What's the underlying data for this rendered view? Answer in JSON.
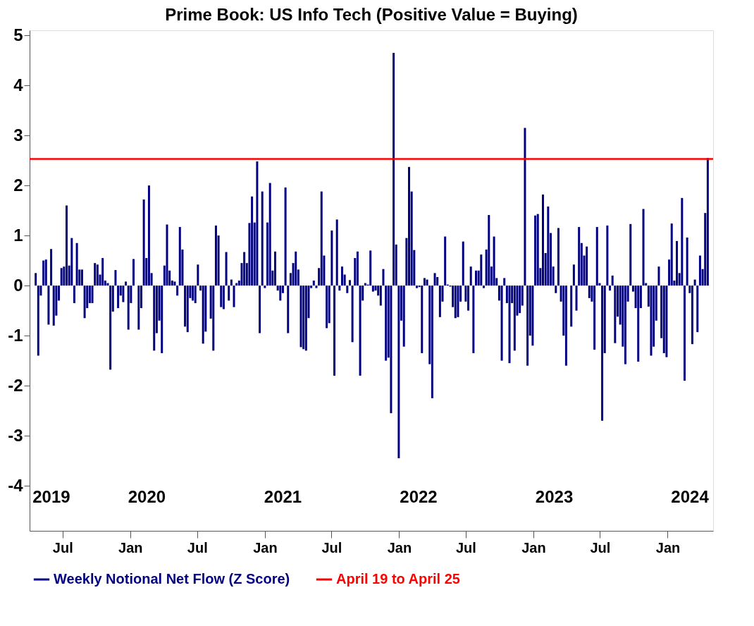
{
  "chart_data": {
    "type": "bar",
    "title": "Prime Book: US Info Tech (Positive Value = Buying)",
    "x": [
      "2019-04-19",
      "2019-04-26",
      "2019-05-03",
      "2019-05-10",
      "2019-05-17",
      "2019-05-24",
      "2019-05-31",
      "2019-06-07",
      "2019-06-14",
      "2019-06-21",
      "2019-06-28",
      "2019-07-05",
      "2019-07-12",
      "2019-07-19",
      "2019-07-26",
      "2019-08-02",
      "2019-08-09",
      "2019-08-16",
      "2019-08-23",
      "2019-08-30",
      "2019-09-06",
      "2019-09-13",
      "2019-09-20",
      "2019-09-27",
      "2019-10-04",
      "2019-10-11",
      "2019-10-18",
      "2019-10-25",
      "2019-11-01",
      "2019-11-08",
      "2019-11-15",
      "2019-11-22",
      "2019-11-29",
      "2019-12-06",
      "2019-12-13",
      "2019-12-20",
      "2019-12-27",
      "2020-01-03",
      "2020-01-10",
      "2020-01-17",
      "2020-01-24",
      "2020-01-31",
      "2020-02-07",
      "2020-02-14",
      "2020-02-21",
      "2020-02-28",
      "2020-03-06",
      "2020-03-13",
      "2020-03-20",
      "2020-03-27",
      "2020-04-03",
      "2020-04-10",
      "2020-04-17",
      "2020-04-24",
      "2020-05-01",
      "2020-05-08",
      "2020-05-15",
      "2020-05-22",
      "2020-05-29",
      "2020-06-05",
      "2020-06-12",
      "2020-06-19",
      "2020-06-26",
      "2020-07-03",
      "2020-07-10",
      "2020-07-17",
      "2020-07-24",
      "2020-07-31",
      "2020-08-07",
      "2020-08-14",
      "2020-08-21",
      "2020-08-28",
      "2020-09-04",
      "2020-09-11",
      "2020-09-18",
      "2020-09-25",
      "2020-10-02",
      "2020-10-09",
      "2020-10-16",
      "2020-10-23",
      "2020-10-30",
      "2020-11-06",
      "2020-11-13",
      "2020-11-20",
      "2020-11-27",
      "2020-12-04",
      "2020-12-11",
      "2020-12-18",
      "2020-12-25",
      "2021-01-01",
      "2021-01-08",
      "2021-01-15",
      "2021-01-22",
      "2021-01-29",
      "2021-02-05",
      "2021-02-12",
      "2021-02-19",
      "2021-02-26",
      "2021-03-05",
      "2021-03-12",
      "2021-03-19",
      "2021-03-26",
      "2021-04-02",
      "2021-04-09",
      "2021-04-16",
      "2021-04-23",
      "2021-04-30",
      "2021-05-07",
      "2021-05-14",
      "2021-05-21",
      "2021-05-28",
      "2021-06-04",
      "2021-06-11",
      "2021-06-18",
      "2021-06-25",
      "2021-07-02",
      "2021-07-09",
      "2021-07-16",
      "2021-07-23",
      "2021-07-30",
      "2021-08-06",
      "2021-08-13",
      "2021-08-20",
      "2021-08-27",
      "2021-09-03",
      "2021-09-10",
      "2021-09-17",
      "2021-09-24",
      "2021-10-01",
      "2021-10-08",
      "2021-10-15",
      "2021-10-22",
      "2021-10-29",
      "2021-11-05",
      "2021-11-12",
      "2021-11-19",
      "2021-11-26",
      "2021-12-03",
      "2021-12-10",
      "2021-12-17",
      "2021-12-24",
      "2021-12-31",
      "2022-01-07",
      "2022-01-14",
      "2022-01-21",
      "2022-01-28",
      "2022-02-04",
      "2022-02-11",
      "2022-02-18",
      "2022-02-25",
      "2022-03-04",
      "2022-03-11",
      "2022-03-18",
      "2022-03-25",
      "2022-04-01",
      "2022-04-08",
      "2022-04-15",
      "2022-04-22",
      "2022-04-29",
      "2022-05-06",
      "2022-05-13",
      "2022-05-20",
      "2022-05-27",
      "2022-06-03",
      "2022-06-10",
      "2022-06-17",
      "2022-06-24",
      "2022-07-01",
      "2022-07-08",
      "2022-07-15",
      "2022-07-22",
      "2022-07-29",
      "2022-08-05",
      "2022-08-12",
      "2022-08-19",
      "2022-08-26",
      "2022-09-02",
      "2022-09-09",
      "2022-09-16",
      "2022-09-23",
      "2022-09-30",
      "2022-10-07",
      "2022-10-14",
      "2022-10-21",
      "2022-10-28",
      "2022-11-04",
      "2022-11-11",
      "2022-11-18",
      "2022-11-25",
      "2022-12-02",
      "2022-12-09",
      "2022-12-16",
      "2022-12-23",
      "2022-12-30",
      "2023-01-06",
      "2023-01-13",
      "2023-01-20",
      "2023-01-27",
      "2023-02-03",
      "2023-02-10",
      "2023-02-17",
      "2023-02-24",
      "2023-03-03",
      "2023-03-10",
      "2023-03-17",
      "2023-03-24",
      "2023-03-31",
      "2023-04-07",
      "2023-04-14",
      "2023-04-21",
      "2023-04-28",
      "2023-05-05",
      "2023-05-12",
      "2023-05-19",
      "2023-05-26",
      "2023-06-02",
      "2023-06-09",
      "2023-06-16",
      "2023-06-23",
      "2023-06-30",
      "2023-07-07",
      "2023-07-14",
      "2023-07-21",
      "2023-07-28",
      "2023-08-04",
      "2023-08-11",
      "2023-08-18",
      "2023-08-25",
      "2023-09-01",
      "2023-09-08",
      "2023-09-15",
      "2023-09-22",
      "2023-09-29",
      "2023-10-06",
      "2023-10-13",
      "2023-10-20",
      "2023-10-27",
      "2023-11-03",
      "2023-11-10",
      "2023-11-17",
      "2023-11-24",
      "2023-12-01",
      "2023-12-08",
      "2023-12-15",
      "2023-12-22",
      "2023-12-29",
      "2024-01-05",
      "2024-01-12",
      "2024-01-19",
      "2024-01-26",
      "2024-02-02",
      "2024-02-09",
      "2024-02-16",
      "2024-02-23",
      "2024-03-01",
      "2024-03-08",
      "2024-03-15",
      "2024-03-22",
      "2024-03-29",
      "2024-04-05",
      "2024-04-12",
      "2024-04-19"
    ],
    "series": [
      {
        "name": "Weekly Notional Net Flow (Z Score)",
        "color": "#000080",
        "values": [
          0.25,
          -1.4,
          -0.2,
          0.5,
          0.52,
          -0.78,
          0.73,
          -0.8,
          -0.6,
          -0.3,
          0.35,
          0.38,
          1.6,
          0.4,
          0.95,
          -0.35,
          0.85,
          0.32,
          0.32,
          -0.65,
          -0.45,
          -0.35,
          -0.35,
          0.45,
          0.42,
          0.22,
          0.55,
          0.1,
          0.05,
          -1.68,
          -0.52,
          0.31,
          -0.45,
          -0.2,
          -0.33,
          0.08,
          -0.88,
          -0.35,
          0.53,
          0,
          -0.88,
          -0.45,
          1.72,
          0.55,
          2.0,
          0.25,
          -1.3,
          -0.95,
          -0.7,
          -1.35,
          0.4,
          1.22,
          0.3,
          0.1,
          0.08,
          -0.2,
          1.17,
          0.72,
          -0.82,
          -0.93,
          -0.25,
          -0.3,
          -0.35,
          0.42,
          -0.1,
          -1.16,
          -0.92,
          0,
          -0.66,
          -1.3,
          1.2,
          1.0,
          -0.43,
          -0.47,
          0.67,
          -0.3,
          0.12,
          -0.43,
          0.05,
          0.1,
          0.45,
          0.67,
          0.45,
          1.25,
          1.78,
          1.26,
          2.48,
          -0.95,
          1.88,
          -0.05,
          1.26,
          2.05,
          0.3,
          0.68,
          -0.1,
          -0.3,
          -0.15,
          1.96,
          -0.95,
          0.25,
          0.45,
          0.68,
          0.32,
          -1.23,
          -1.27,
          -1.3,
          -0.65,
          -0.05,
          0.1,
          -0.05,
          0.35,
          1.88,
          0.6,
          -0.85,
          -0.75,
          1.1,
          -1.8,
          1.32,
          -0.1,
          0.38,
          0.22,
          -0.15,
          0.11,
          -1.13,
          0.55,
          0.68,
          -1.8,
          -0.3,
          0.05,
          0.02,
          0.7,
          -0.12,
          -0.1,
          -0.2,
          -0.4,
          0.33,
          -1.5,
          -1.44,
          -2.55,
          4.65,
          0.82,
          -3.45,
          -0.7,
          -1.22,
          0.95,
          2.37,
          1.88,
          0.71,
          -0.05,
          -0.03,
          -1.35,
          0.15,
          0.12,
          -1.57,
          -2.25,
          0.25,
          0.17,
          -0.63,
          -0.32,
          0.98,
          0.02,
          -0.02,
          -0.43,
          -0.65,
          -0.63,
          -0.32,
          0.88,
          -0.32,
          -0.5,
          0.38,
          -1.35,
          0.3,
          0.3,
          0.62,
          -0.05,
          0.72,
          1.41,
          0.38,
          0.98,
          0.15,
          -0.3,
          -1.5,
          0.15,
          -0.35,
          -1.55,
          -0.35,
          -1.3,
          -0.6,
          -0.55,
          -0.4,
          3.15,
          -1.6,
          -1.0,
          -1.2,
          1.4,
          1.43,
          0.35,
          1.82,
          0.65,
          1.58,
          1.05,
          0.38,
          -0.15,
          1.15,
          -0.32,
          -1.0,
          -1.6,
          0.0,
          -0.82,
          0.42,
          -0.5,
          1.17,
          0.85,
          0.6,
          0.78,
          -0.25,
          -0.32,
          -1.28,
          1.17,
          0.05,
          -2.7,
          -1.35,
          1.2,
          -0.1,
          0.2,
          -1.15,
          -0.62,
          -0.78,
          -1.22,
          -1.57,
          -0.32,
          1.23,
          -0.12,
          -0.45,
          -1.52,
          -0.45,
          1.53,
          0.05,
          -0.42,
          -1.4,
          -1.22,
          -0.7,
          0.38,
          -1.05,
          -1.35,
          -1.43,
          0.52,
          1.24,
          0.1,
          0.89,
          0.25,
          1.75,
          -1.9,
          0.96,
          -0.15,
          -1.17,
          0.12,
          -0.93,
          0.6,
          0.33,
          1.45,
          2.55
        ]
      }
    ],
    "ref_lines": [
      {
        "axis": "y",
        "value": 2.53,
        "label": "April 19 to April 25",
        "color": "#ff0000",
        "line_style": "solid"
      }
    ],
    "xlim": [
      "2019-04-12",
      "2024-04-24"
    ],
    "xticks": [
      {
        "value": "2019-07-01",
        "label": "Jul"
      },
      {
        "value": "2020-01-01",
        "label": "Jan"
      },
      {
        "value": "2020-07-01",
        "label": "Jul"
      },
      {
        "value": "2021-01-01",
        "label": "Jan"
      },
      {
        "value": "2021-07-01",
        "label": "Jul"
      },
      {
        "value": "2022-01-01",
        "label": "Jan"
      },
      {
        "value": "2022-07-01",
        "label": "Jul"
      },
      {
        "value": "2023-01-01",
        "label": "Jan"
      },
      {
        "value": "2023-07-01",
        "label": "Jul"
      },
      {
        "value": "2024-01-01",
        "label": "Jan"
      }
    ],
    "ylim": [
      -4.9,
      5.1
    ],
    "yticks": [
      -4,
      -3,
      -2,
      -1,
      0,
      1,
      2,
      3,
      4,
      5
    ],
    "x2lim": [
      "2019-04-12",
      "2024-04-24"
    ],
    "x2ticks": [
      {
        "value": "2019-04-19",
        "label": "2019"
      },
      {
        "value": "2020-01-01",
        "label": "2020"
      },
      {
        "value": "2021-01-01",
        "label": "2021"
      },
      {
        "value": "2022-01-01",
        "label": "2022"
      },
      {
        "value": "2023-01-01",
        "label": "2023"
      },
      {
        "value": "2024-01-01",
        "label": "2024"
      }
    ],
    "grid": false,
    "legend": "bottom"
  }
}
